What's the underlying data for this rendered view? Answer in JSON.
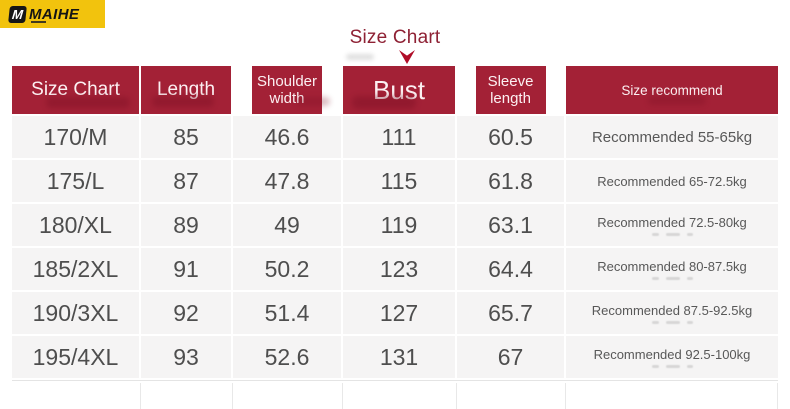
{
  "logo": {
    "mark": "M",
    "text": "MAIHE"
  },
  "title": "Size Chart",
  "arrow_icon": "down-arrow-icon",
  "colors": {
    "header_red": "#a32136",
    "title_red": "#8e2134",
    "arrow_red": "#b00d28",
    "logo_yellow": "#f2c30d",
    "row_gray": "#f5f4f4",
    "body_text": "#4e4e4e"
  },
  "chart_data": {
    "type": "table",
    "title": "Size Chart",
    "columns": [
      "Size Chart",
      "Length",
      "Shoulder width",
      "Bust",
      "Sleeve length",
      "Size recommend"
    ],
    "rows": [
      [
        "170/M",
        "85",
        "46.6",
        "111",
        "60.5",
        "Recommended 55-65kg"
      ],
      [
        "175/L",
        "87",
        "47.8",
        "115",
        "61.8",
        "Recommended 65-72.5kg"
      ],
      [
        "180/XL",
        "89",
        "49",
        "119",
        "63.1",
        "Recommended 72.5-80kg"
      ],
      [
        "185/2XL",
        "91",
        "50.2",
        "123",
        "64.4",
        "Recommended 80-87.5kg"
      ],
      [
        "190/3XL",
        "92",
        "51.4",
        "127",
        "65.7",
        "Recommended 87.5-92.5kg"
      ],
      [
        "195/4XL",
        "93",
        "52.6",
        "131",
        "67",
        "Recommended 92.5-100kg"
      ]
    ]
  },
  "decor": {
    "smudge_rows": [
      2,
      3,
      4,
      5
    ]
  }
}
